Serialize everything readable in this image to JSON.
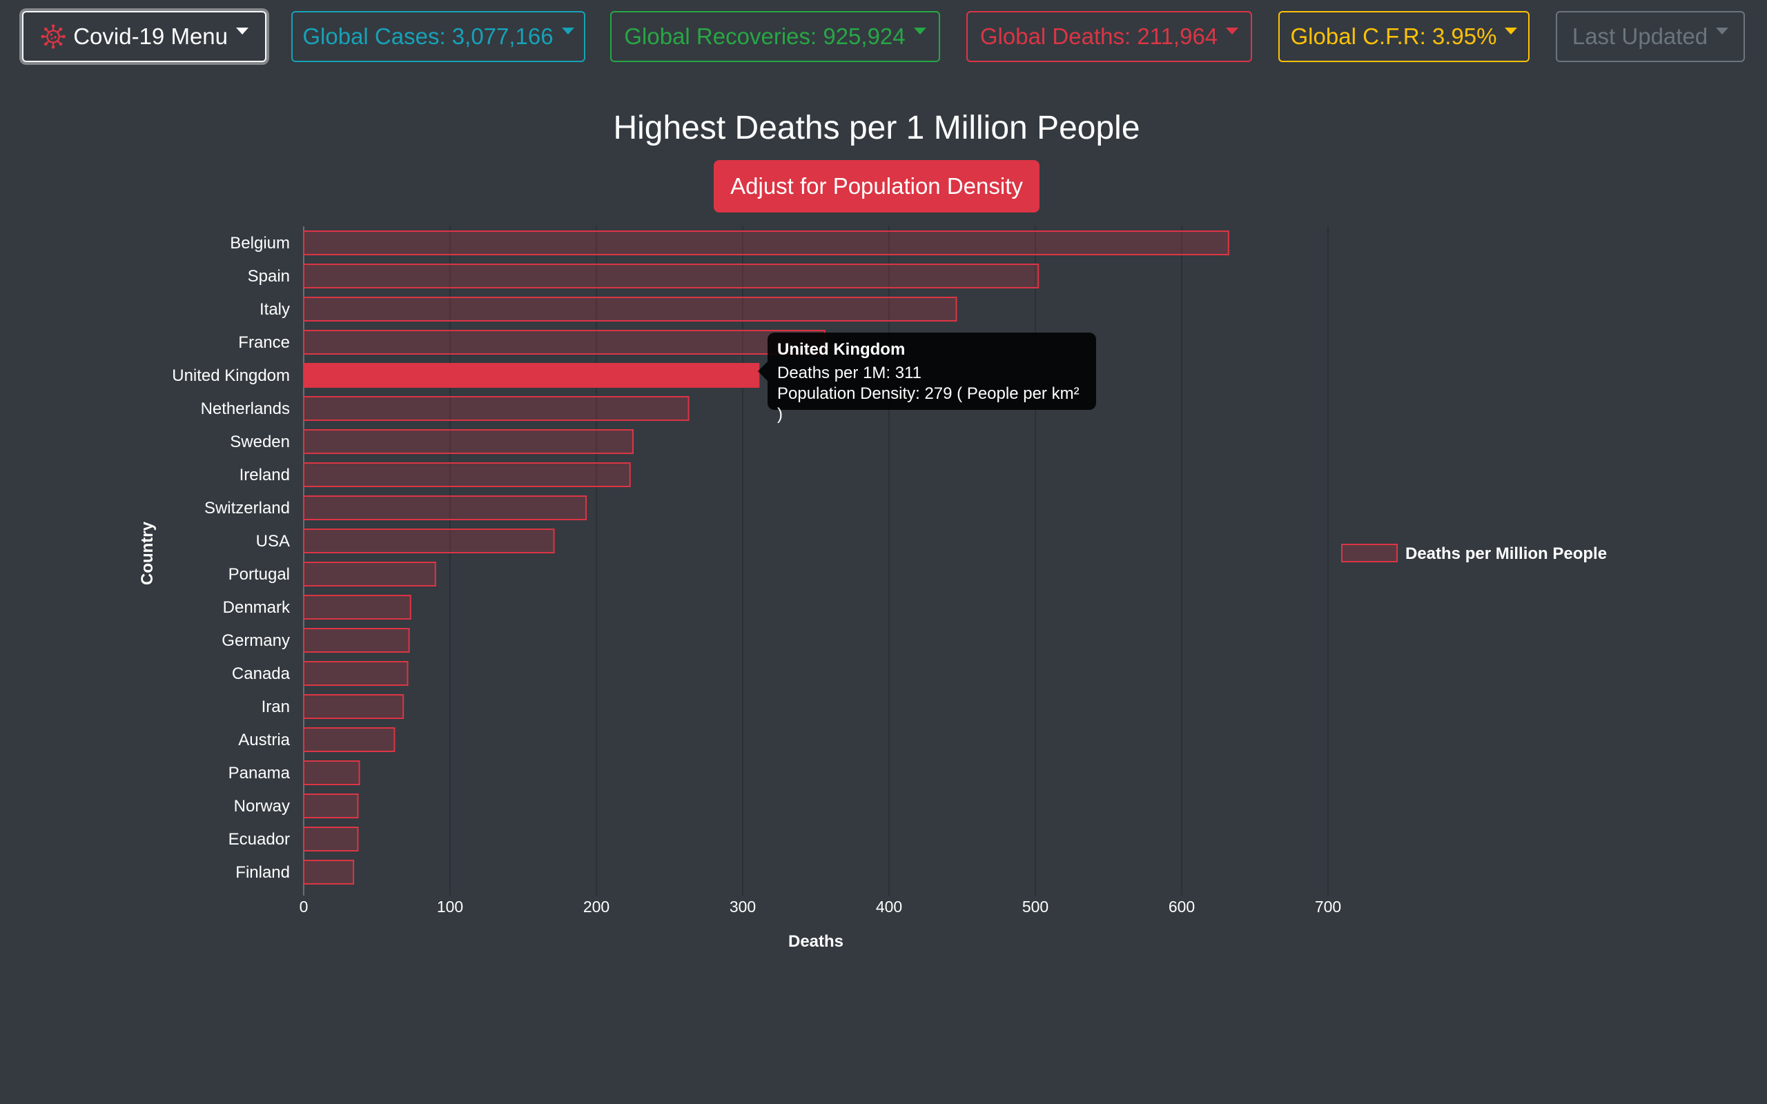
{
  "navbar": {
    "menu_label": "Covid-19 Menu",
    "menu_icon": "virus-icon",
    "global_cases": "Global Cases: 3,077,166",
    "global_recoveries": "Global Recoveries: 925,924",
    "global_deaths": "Global Deaths: 211,964",
    "global_cfr": "Global C.F.R: 3.95%",
    "last_updated": "Last Updated"
  },
  "colors": {
    "background": "#343a40",
    "cases": "#17a2b8",
    "recoveries": "#28a745",
    "deaths": "#dc3545",
    "cfr": "#ffc107",
    "updated": "#6c757d"
  },
  "adjust_button_label": "Adjust for Population Density",
  "tooltip": {
    "title": "United Kingdom",
    "line1": "Deaths per 1M: 311",
    "line2": "Population Density: 279 ( People per km² )"
  },
  "chart_data": {
    "type": "bar",
    "orientation": "horizontal",
    "title": "Highest Deaths per 1 Million People",
    "xlabel": "Deaths",
    "ylabel": "Country",
    "xlim": [
      0,
      700
    ],
    "xticks": [
      0,
      100,
      200,
      300,
      400,
      500,
      600,
      700
    ],
    "grid": true,
    "legend_position": "right",
    "highlighted_category": "United Kingdom",
    "categories": [
      "Belgium",
      "Spain",
      "Italy",
      "France",
      "United Kingdom",
      "Netherlands",
      "Sweden",
      "Ireland",
      "Switzerland",
      "USA",
      "Portugal",
      "Denmark",
      "Germany",
      "Canada",
      "Iran",
      "Austria",
      "Panama",
      "Norway",
      "Ecuador",
      "Finland"
    ],
    "series": [
      {
        "name": "Deaths per Million People",
        "color": "#dc3545",
        "values": [
          632,
          502,
          446,
          356,
          311,
          263,
          225,
          223,
          193,
          171,
          90,
          73,
          72,
          71,
          68,
          62,
          38,
          37,
          37,
          34
        ]
      }
    ]
  }
}
